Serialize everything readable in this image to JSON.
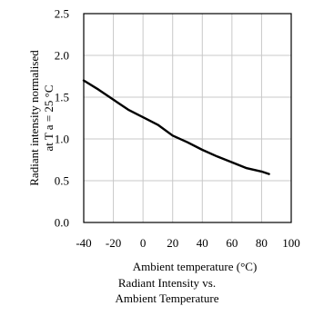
{
  "chart_data": {
    "type": "line",
    "xlabel": "Ambient temperature (°C)",
    "ylabel_lines": [
      "Radiant intensity normalised",
      "at T a = 25 °C"
    ],
    "caption_lines": [
      "Radiant Intensity vs.",
      "Ambient Temperature"
    ],
    "xlim": [
      -40,
      100
    ],
    "ylim": [
      0.0,
      2.5
    ],
    "x_ticks": [
      -40,
      -20,
      0,
      20,
      40,
      60,
      80,
      100
    ],
    "x_tick_labels": [
      "-40",
      "-20",
      "0",
      "20",
      "40",
      "60",
      "80",
      "100"
    ],
    "y_ticks": [
      0.0,
      0.5,
      1.0,
      1.5,
      2.0,
      2.5
    ],
    "y_tick_labels": [
      "0.0",
      "0.5",
      "1.0",
      "1.5",
      "2.0",
      "2.5"
    ],
    "grid": true,
    "line_color": "#000000",
    "grid_color": "#c8c8c8",
    "series": [
      {
        "x": [
          -40,
          -30,
          -20,
          -10,
          0,
          10,
          20,
          30,
          40,
          50,
          60,
          70,
          80,
          85
        ],
        "y": [
          1.7,
          1.59,
          1.47,
          1.35,
          1.26,
          1.17,
          1.04,
          0.96,
          0.87,
          0.79,
          0.72,
          0.65,
          0.61,
          0.58
        ]
      }
    ]
  }
}
